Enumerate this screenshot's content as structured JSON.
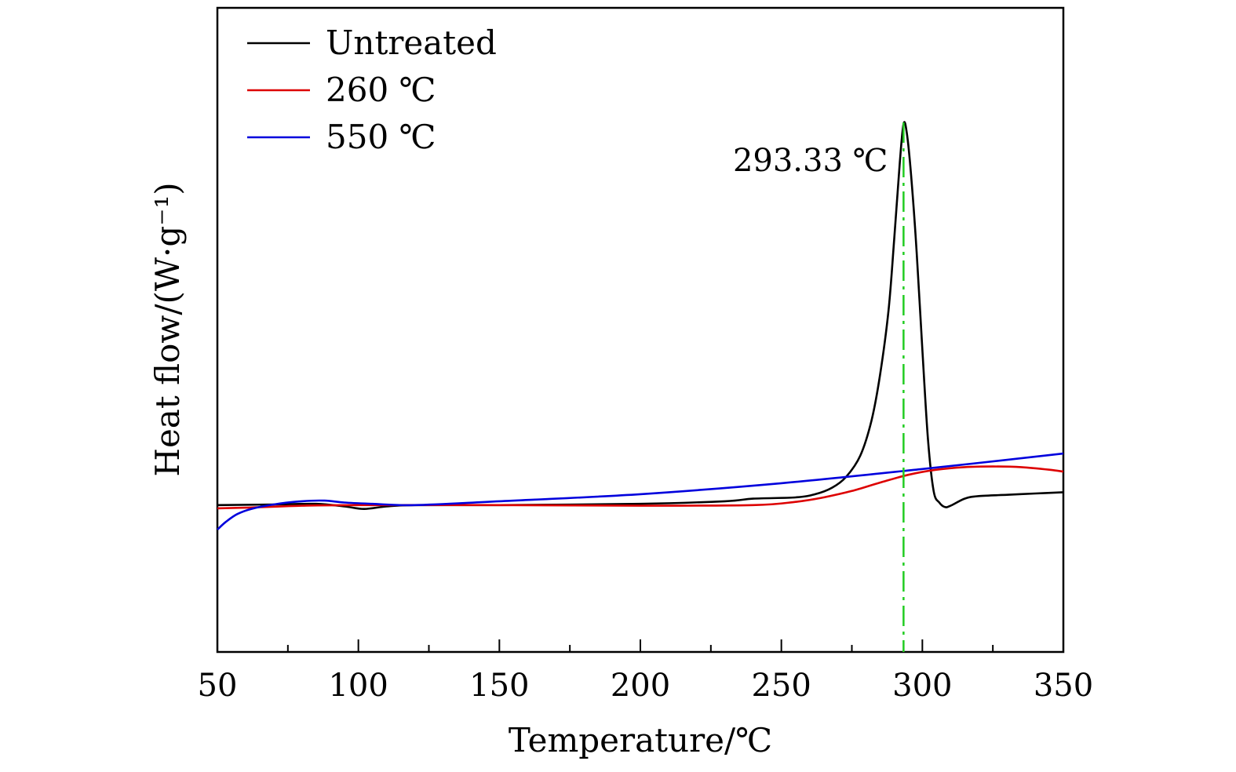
{
  "chart_data": {
    "type": "line",
    "title": "",
    "xlabel": "Temperature/℃",
    "ylabel": "Heat flow/(W·g⁻¹)",
    "xlim": [
      50,
      350
    ],
    "ylim": [
      0,
      1
    ],
    "x_ticks": [
      "50",
      "100",
      "150",
      "200",
      "250",
      "300",
      "350"
    ],
    "x_minor_tick_step": 25,
    "y_ticks_shown": false,
    "grid": false,
    "legend_position": "top-left",
    "annotation": {
      "text": "293.33 ℃",
      "x": 293.33,
      "line_color": "#22cc22",
      "line_style": "dash-dot"
    },
    "series": [
      {
        "name": "Untreated",
        "color": "#000000",
        "points": [
          [
            50,
            0.228
          ],
          [
            70,
            0.229
          ],
          [
            85,
            0.23
          ],
          [
            95,
            0.226
          ],
          [
            102,
            0.222
          ],
          [
            110,
            0.226
          ],
          [
            120,
            0.228
          ],
          [
            150,
            0.228
          ],
          [
            200,
            0.23
          ],
          [
            230,
            0.234
          ],
          [
            240,
            0.238
          ],
          [
            255,
            0.24
          ],
          [
            262,
            0.245
          ],
          [
            268,
            0.255
          ],
          [
            273,
            0.272
          ],
          [
            278,
            0.305
          ],
          [
            282,
            0.36
          ],
          [
            285,
            0.43
          ],
          [
            288,
            0.53
          ],
          [
            290,
            0.64
          ],
          [
            292,
            0.76
          ],
          [
            293.33,
            0.82
          ],
          [
            294.5,
            0.805
          ],
          [
            296,
            0.74
          ],
          [
            298,
            0.62
          ],
          [
            300,
            0.47
          ],
          [
            302,
            0.33
          ],
          [
            304,
            0.25
          ],
          [
            306,
            0.232
          ],
          [
            308,
            0.225
          ],
          [
            310,
            0.227
          ],
          [
            315,
            0.238
          ],
          [
            320,
            0.242
          ],
          [
            330,
            0.244
          ],
          [
            340,
            0.246
          ],
          [
            350,
            0.248
          ]
        ]
      },
      {
        "name": "260 ℃",
        "color": "#dd0000",
        "points": [
          [
            50,
            0.223
          ],
          [
            60,
            0.224
          ],
          [
            80,
            0.227
          ],
          [
            100,
            0.228
          ],
          [
            150,
            0.228
          ],
          [
            200,
            0.227
          ],
          [
            240,
            0.228
          ],
          [
            255,
            0.233
          ],
          [
            265,
            0.24
          ],
          [
            275,
            0.25
          ],
          [
            285,
            0.263
          ],
          [
            295,
            0.275
          ],
          [
            305,
            0.283
          ],
          [
            315,
            0.287
          ],
          [
            325,
            0.288
          ],
          [
            335,
            0.287
          ],
          [
            345,
            0.283
          ],
          [
            350,
            0.28
          ]
        ]
      },
      {
        "name": "550 ℃",
        "color": "#0000dd",
        "points": [
          [
            50,
            0.19
          ],
          [
            53,
            0.202
          ],
          [
            57,
            0.214
          ],
          [
            62,
            0.222
          ],
          [
            70,
            0.229
          ],
          [
            80,
            0.234
          ],
          [
            88,
            0.235
          ],
          [
            95,
            0.232
          ],
          [
            105,
            0.23
          ],
          [
            120,
            0.228
          ],
          [
            150,
            0.234
          ],
          [
            200,
            0.245
          ],
          [
            250,
            0.262
          ],
          [
            300,
            0.284
          ],
          [
            350,
            0.308
          ]
        ]
      }
    ]
  }
}
